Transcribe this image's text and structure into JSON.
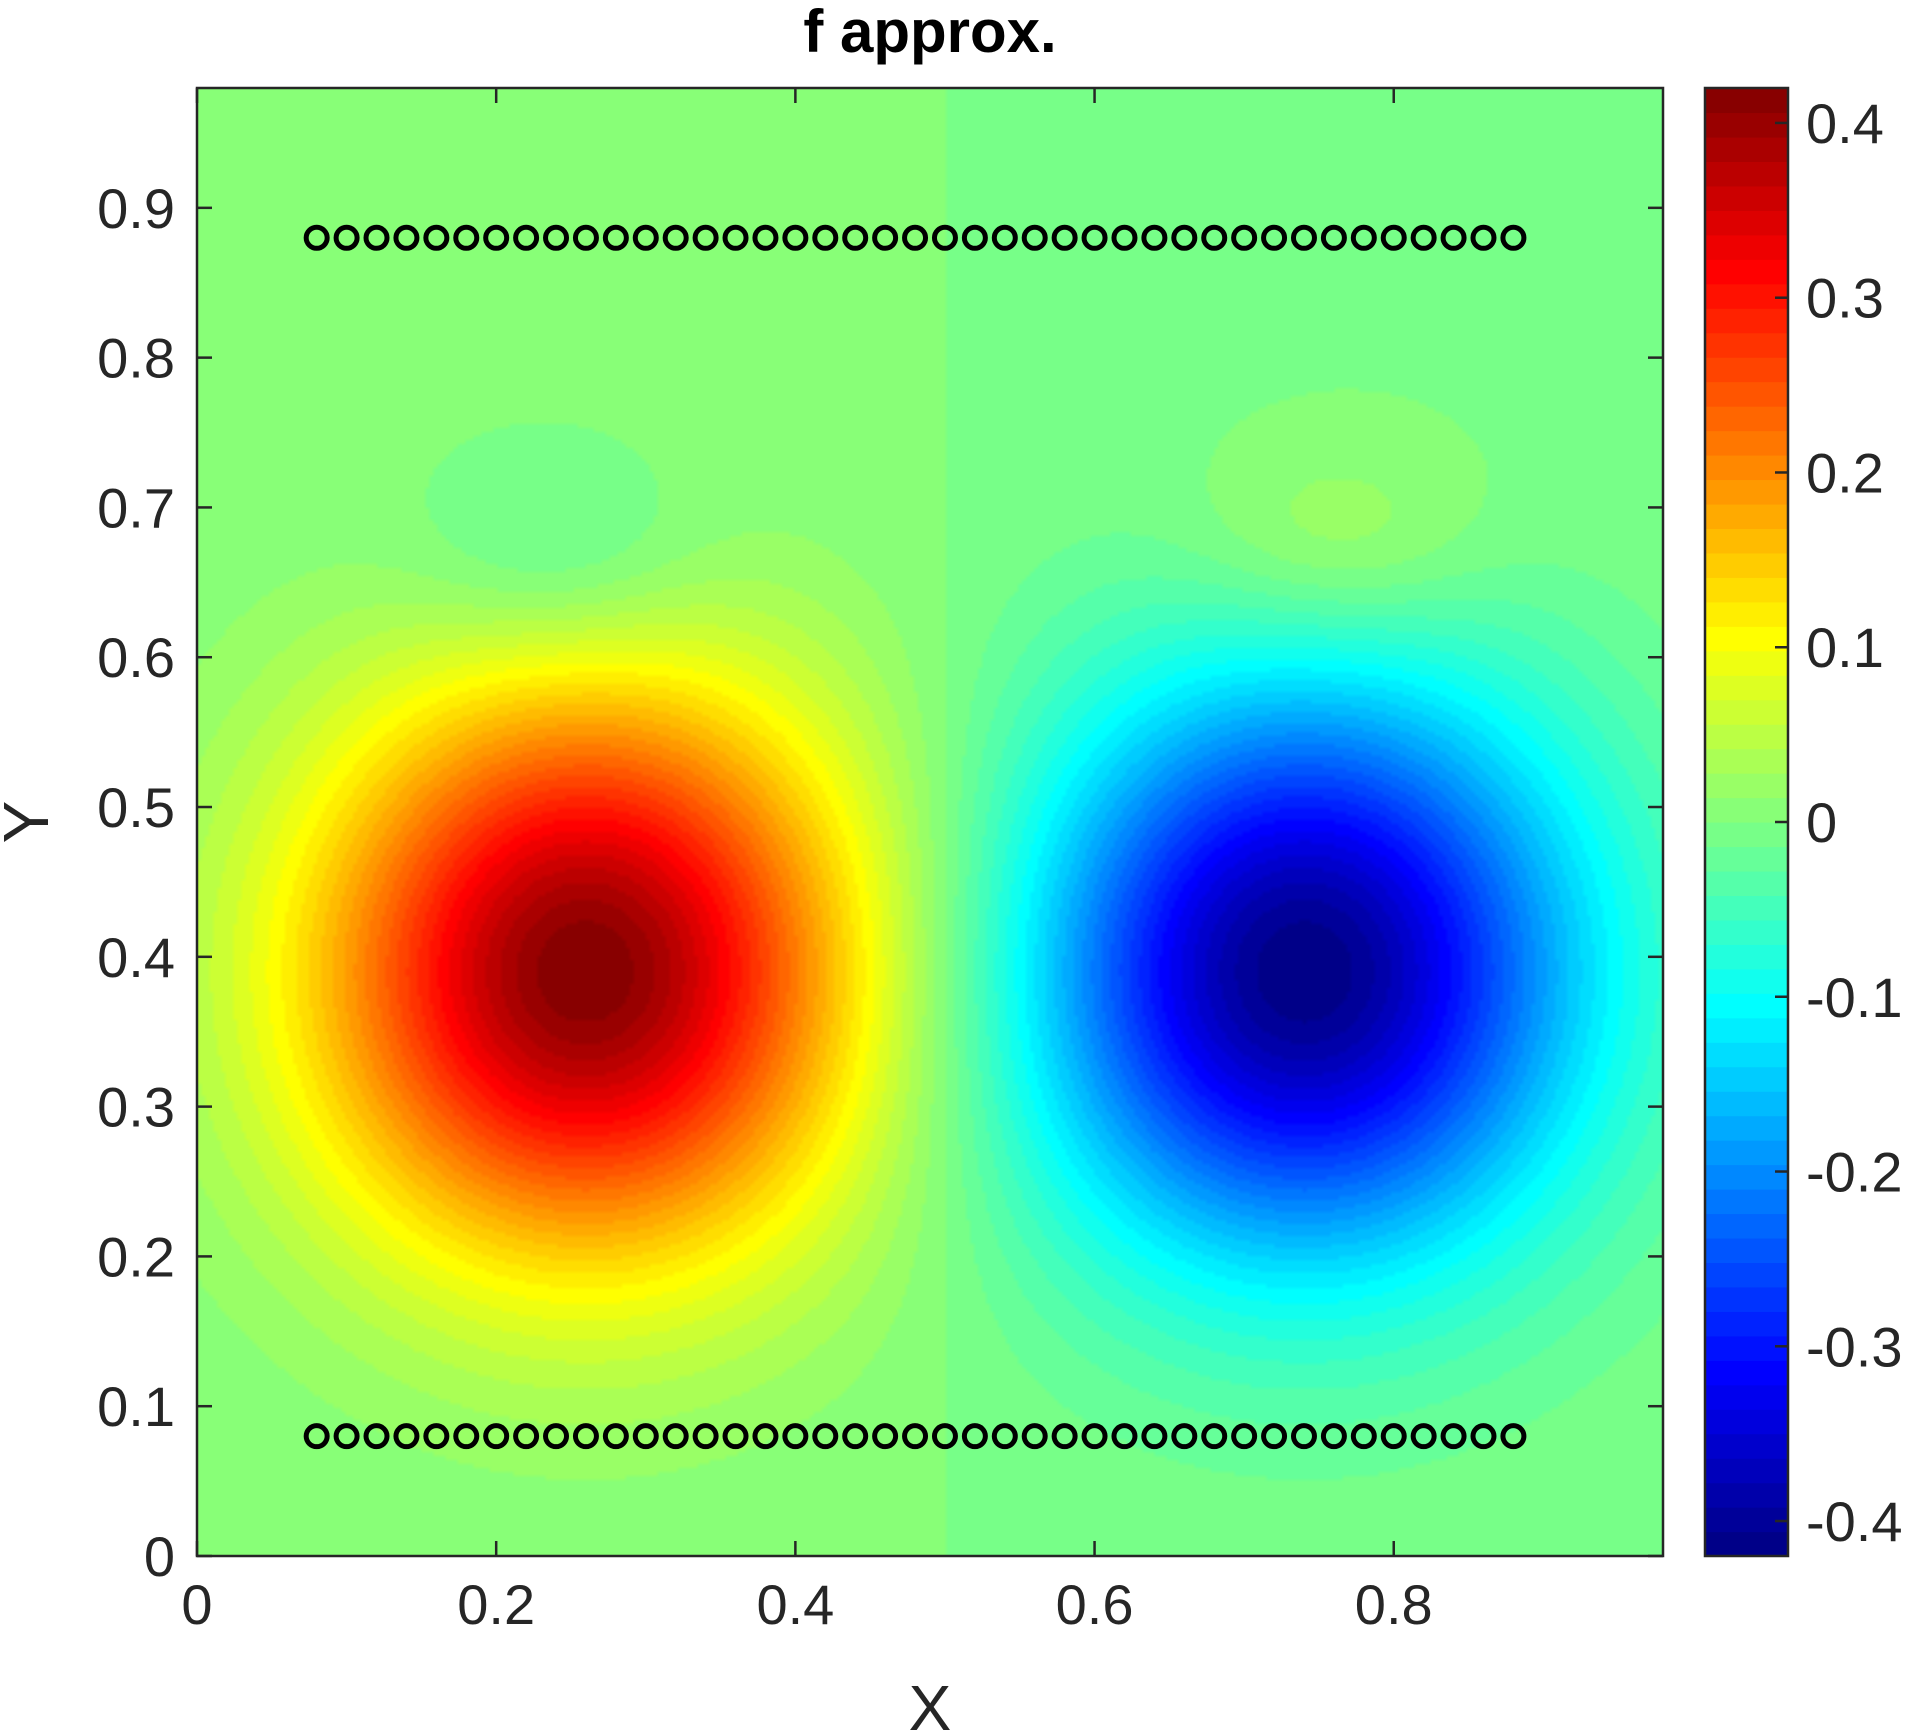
{
  "chart_data": {
    "type": "heatmap",
    "title": "f approx.",
    "xlabel": "X",
    "ylabel": "Y",
    "xlim": [
      0,
      0.98
    ],
    "ylim": [
      0,
      0.98
    ],
    "x_ticks": [
      "0",
      "0.2",
      "0.4",
      "0.6",
      "0.8"
    ],
    "x_tick_values": [
      0,
      0.2,
      0.4,
      0.6,
      0.8
    ],
    "y_ticks": [
      "0",
      "0.1",
      "0.2",
      "0.3",
      "0.4",
      "0.5",
      "0.6",
      "0.7",
      "0.8",
      "0.9"
    ],
    "y_tick_values": [
      0,
      0.1,
      0.2,
      0.3,
      0.4,
      0.5,
      0.6,
      0.7,
      0.8,
      0.9
    ],
    "colormap": "jet",
    "contour_levels": 60,
    "clim": [
      -0.42,
      0.42
    ],
    "colorbar_ticks": [
      "0.4",
      "0.3",
      "0.2",
      "0.1",
      "0",
      "-0.1",
      "-0.2",
      "-0.3",
      "-0.4"
    ],
    "colorbar_tick_values": [
      0.4,
      0.3,
      0.2,
      0.1,
      0,
      -0.1,
      -0.2,
      -0.3,
      -0.4
    ],
    "field_peaks": [
      {
        "x": 0.26,
        "y": 0.39,
        "value": 0.42
      },
      {
        "x": 0.74,
        "y": 0.39,
        "value": -0.42
      },
      {
        "x": 0.24,
        "y": 0.66,
        "value": -0.05
      },
      {
        "x": 0.76,
        "y": 0.67,
        "value": 0.05
      }
    ],
    "marker_rows": [
      {
        "y": 0.88,
        "x_start": 0.08,
        "x_end": 0.88,
        "step": 0.02
      },
      {
        "y": 0.08,
        "x_start": 0.08,
        "x_end": 0.88,
        "step": 0.02
      }
    ],
    "marker_style": "open-circle",
    "marker_color": "#000000",
    "grid": false
  }
}
